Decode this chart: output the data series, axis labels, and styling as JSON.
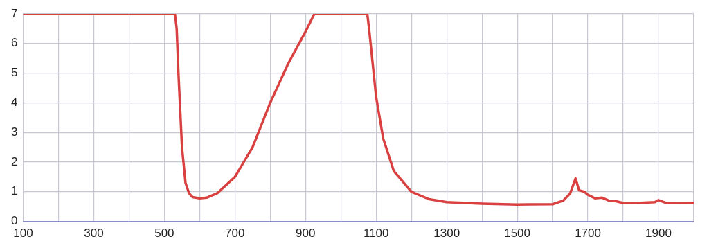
{
  "chart_data": {
    "type": "line",
    "x": [
      100,
      300,
      500,
      530,
      535,
      540,
      550,
      560,
      570,
      580,
      600,
      620,
      650,
      700,
      750,
      800,
      850,
      900,
      925,
      1000,
      1075,
      1080,
      1100,
      1120,
      1150,
      1200,
      1250,
      1300,
      1400,
      1500,
      1600,
      1630,
      1650,
      1665,
      1675,
      1690,
      1700,
      1720,
      1740,
      1760,
      1780,
      1800,
      1850,
      1890,
      1900,
      1920,
      2000
    ],
    "series": [
      {
        "color": "#d94040",
        "values": [
          7,
          7,
          7,
          7,
          6.5,
          5,
          2.5,
          1.3,
          0.95,
          0.82,
          0.78,
          0.8,
          0.95,
          1.5,
          2.5,
          4.0,
          5.3,
          6.4,
          7,
          7,
          7,
          6.5,
          4.2,
          2.8,
          1.7,
          1.0,
          0.75,
          0.65,
          0.6,
          0.57,
          0.58,
          0.7,
          0.95,
          1.45,
          1.05,
          1.0,
          0.9,
          0.78,
          0.8,
          0.7,
          0.68,
          0.62,
          0.63,
          0.65,
          0.72,
          0.63,
          0.62
        ]
      }
    ],
    "xlim": [
      100,
      2000
    ],
    "ylim": [
      0,
      7
    ],
    "xticks": [
      100,
      {
        "value": 200,
        "label": null
      },
      300,
      {
        "value": 400,
        "label": null
      },
      500,
      {
        "value": 600,
        "label": null
      },
      700,
      {
        "value": 800,
        "label": null
      },
      900,
      {
        "value": 1000,
        "label": null
      },
      1100,
      {
        "value": 1200,
        "label": null
      },
      1300,
      {
        "value": 1400,
        "label": null
      },
      1500,
      {
        "value": 1600,
        "label": null
      },
      1700,
      {
        "value": 1800,
        "label": null
      },
      1900,
      {
        "value": 2000,
        "label": null
      }
    ],
    "yticks": [
      0,
      1,
      2,
      3,
      4,
      5,
      6,
      7
    ],
    "grid": true,
    "legend": false,
    "marker": "none",
    "line_style": "solid"
  }
}
